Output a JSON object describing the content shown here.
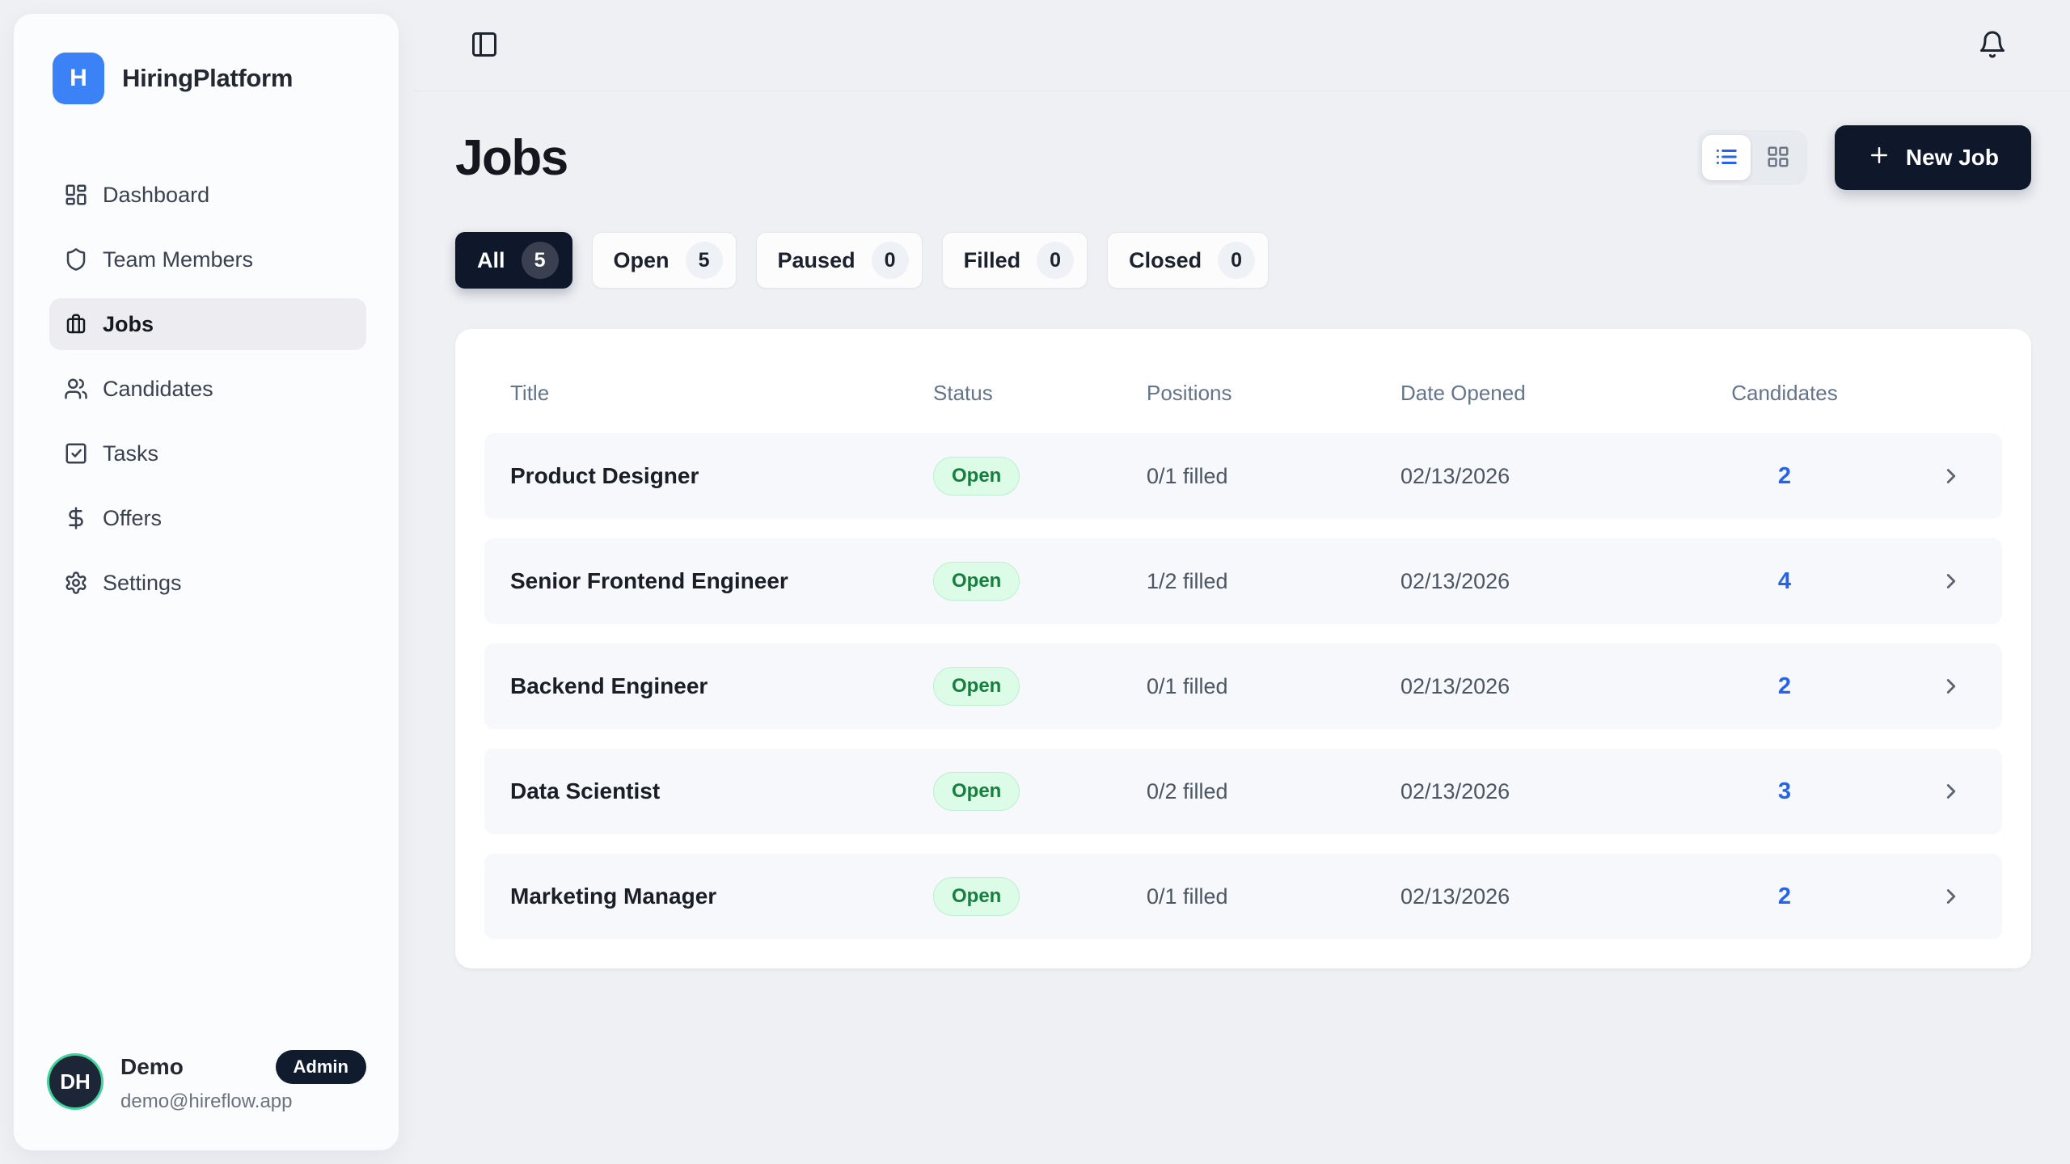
{
  "app": {
    "name": "HiringPlatform",
    "logo_letter": "H"
  },
  "sidebar": {
    "items": [
      {
        "label": "Dashboard",
        "icon": "dashboard-icon",
        "active": false
      },
      {
        "label": "Team Members",
        "icon": "shield-icon",
        "active": false
      },
      {
        "label": "Jobs",
        "icon": "briefcase-icon",
        "active": true
      },
      {
        "label": "Candidates",
        "icon": "users-icon",
        "active": false
      },
      {
        "label": "Tasks",
        "icon": "task-check-icon",
        "active": false
      },
      {
        "label": "Offers",
        "icon": "dollar-icon",
        "active": false
      },
      {
        "label": "Settings",
        "icon": "gear-icon",
        "active": false
      }
    ],
    "user": {
      "initials": "DH",
      "name": "Demo",
      "role_badge": "Admin",
      "email": "demo@hireflow.app"
    }
  },
  "topbar": {
    "left_icon": "panel-toggle-icon",
    "right_icon": "bell-icon"
  },
  "page": {
    "title": "Jobs",
    "new_job_label": "New Job",
    "view_toggle": {
      "active": "list",
      "options": [
        "list",
        "grid"
      ]
    },
    "filters": [
      {
        "label": "All",
        "count": 5,
        "active": true
      },
      {
        "label": "Open",
        "count": 5,
        "active": false
      },
      {
        "label": "Paused",
        "count": 0,
        "active": false
      },
      {
        "label": "Filled",
        "count": 0,
        "active": false
      },
      {
        "label": "Closed",
        "count": 0,
        "active": false
      }
    ]
  },
  "table": {
    "columns": [
      "Title",
      "Status",
      "Positions",
      "Date Opened",
      "Candidates"
    ],
    "rows": [
      {
        "title": "Product Designer",
        "status": "Open",
        "positions": "0/1 filled",
        "date_opened": "02/13/2026",
        "candidates": 2
      },
      {
        "title": "Senior Frontend Engineer",
        "status": "Open",
        "positions": "1/2 filled",
        "date_opened": "02/13/2026",
        "candidates": 4
      },
      {
        "title": "Backend Engineer",
        "status": "Open",
        "positions": "0/1 filled",
        "date_opened": "02/13/2026",
        "candidates": 2
      },
      {
        "title": "Data Scientist",
        "status": "Open",
        "positions": "0/2 filled",
        "date_opened": "02/13/2026",
        "candidates": 3
      },
      {
        "title": "Marketing Manager",
        "status": "Open",
        "positions": "0/1 filled",
        "date_opened": "02/13/2026",
        "candidates": 2
      }
    ]
  },
  "colors": {
    "navy": "#0f172a",
    "accent": "#2563eb",
    "logo_blue": "#3b82f6",
    "open_badge_bg": "#dcfce7",
    "open_badge_text": "#15803d",
    "avatar_ring": "#40d39e",
    "page_bg": "#eef0f4"
  }
}
